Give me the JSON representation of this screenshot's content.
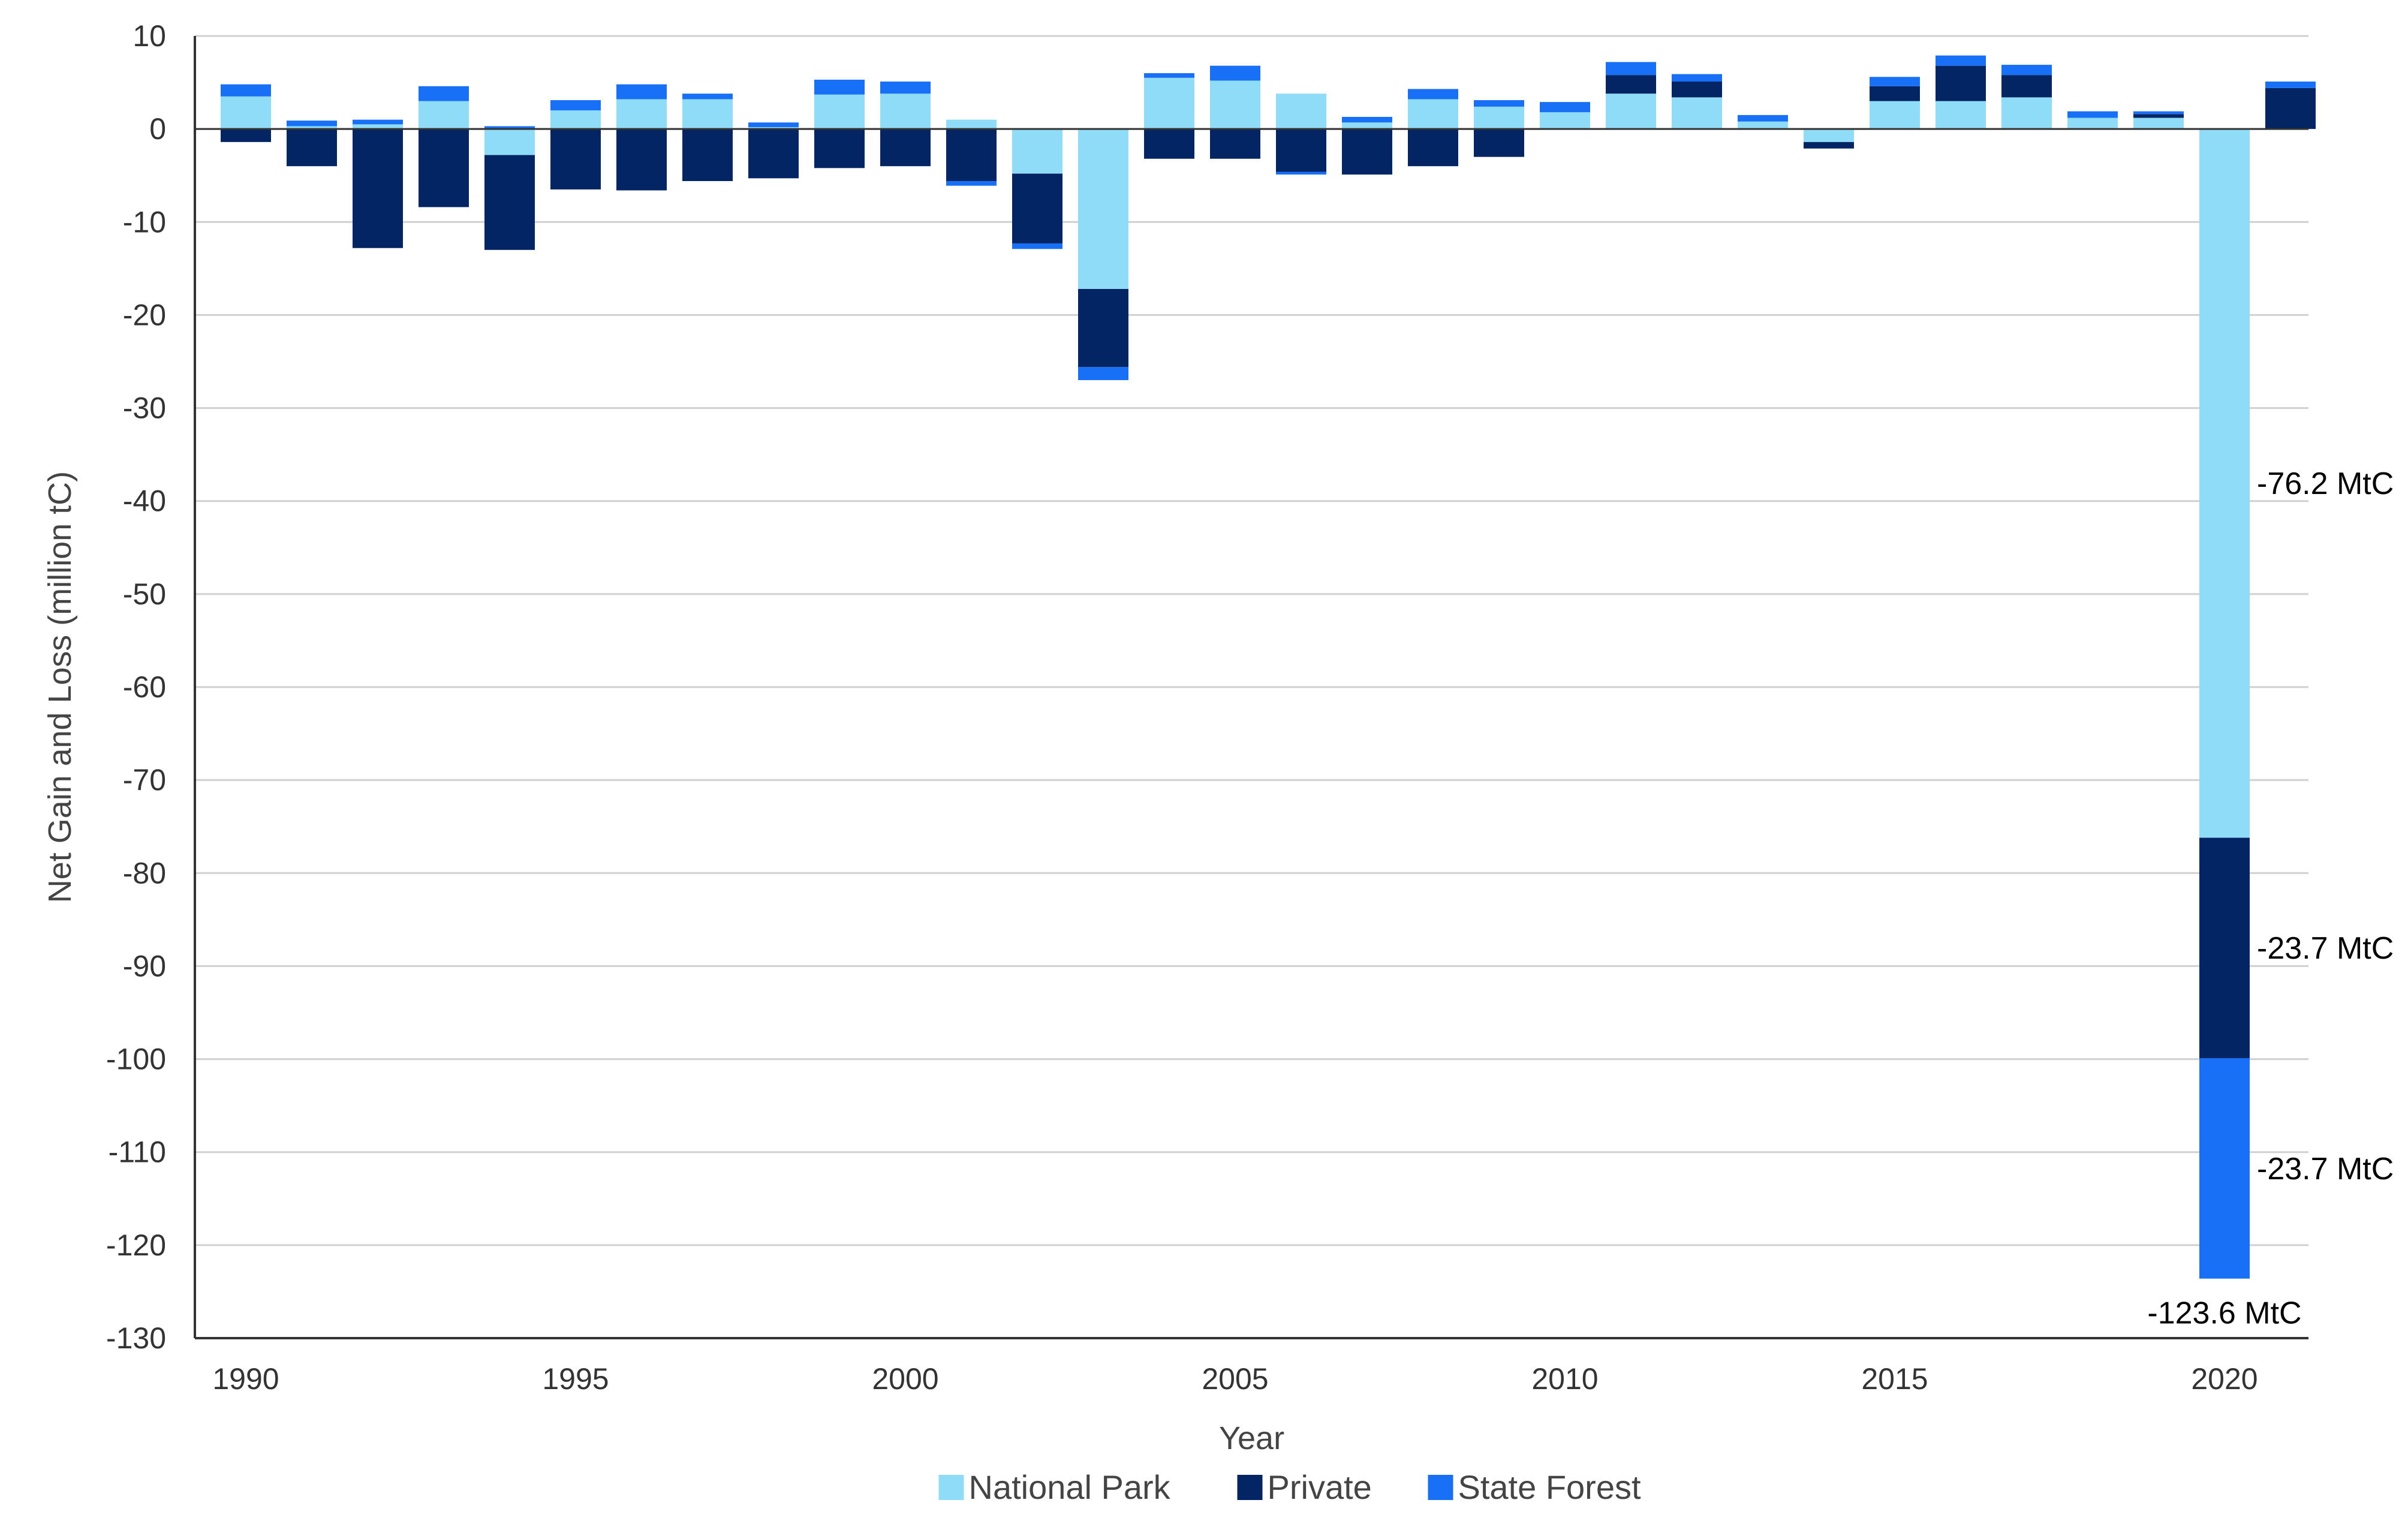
{
  "chart_data": {
    "type": "bar",
    "stacked": true,
    "title": "",
    "xlabel": "Year",
    "ylabel": "Net Gain and Loss (million tC)",
    "ylim": [
      -130,
      10
    ],
    "yticks": [
      10,
      0,
      -10,
      -20,
      -30,
      -40,
      -50,
      -60,
      -70,
      -80,
      -90,
      -100,
      -110,
      -120,
      -130
    ],
    "xticks": [
      1990,
      1995,
      2000,
      2005,
      2010,
      2015,
      2020
    ],
    "grid": true,
    "legend_position": "bottom",
    "categories": [
      1990,
      1991,
      1992,
      1993,
      1994,
      1995,
      1996,
      1997,
      1998,
      1999,
      2000,
      2001,
      2002,
      2003,
      2004,
      2005,
      2006,
      2007,
      2008,
      2009,
      2010,
      2011,
      2012,
      2013,
      2014,
      2015,
      2016,
      2017,
      2018,
      2019,
      2020,
      2021
    ],
    "series": [
      {
        "name": "National Park",
        "color": "#8fdcf9",
        "values": [
          3.5,
          0.3,
          0.5,
          3.0,
          -2.8,
          2.0,
          3.2,
          3.2,
          0.2,
          3.7,
          3.8,
          1.0,
          -4.8,
          -17.2,
          5.5,
          5.2,
          3.8,
          0.7,
          3.2,
          2.4,
          1.8,
          3.8,
          3.4,
          0.8,
          -1.4,
          3.0,
          3.0,
          3.4,
          1.2,
          1.2,
          -76.2,
          0.0
        ]
      },
      {
        "name": "Private",
        "color": "#032563",
        "values": [
          -1.4,
          -4.0,
          -12.8,
          -8.4,
          -10.2,
          -6.5,
          -6.6,
          -5.6,
          -5.3,
          -4.2,
          -4.0,
          -5.6,
          -7.5,
          -8.4,
          -3.2,
          -3.2,
          -4.6,
          -4.9,
          -4.0,
          -3.0,
          0.0,
          2.0,
          1.7,
          0.0,
          -0.7,
          1.6,
          3.8,
          2.4,
          0.0,
          0.4,
          -23.7,
          4.4
        ]
      },
      {
        "name": "State Forest",
        "color": "#1870f7",
        "values": [
          1.3,
          0.6,
          0.5,
          1.6,
          0.3,
          1.1,
          1.6,
          0.6,
          0.5,
          1.6,
          1.3,
          -0.5,
          -0.6,
          -1.4,
          0.5,
          1.6,
          -0.3,
          0.6,
          1.1,
          0.7,
          1.1,
          1.4,
          0.8,
          0.7,
          0.0,
          1.0,
          1.1,
          1.1,
          0.7,
          0.3,
          -23.7,
          0.7
        ]
      }
    ],
    "annotations": [
      {
        "text": "-76.2 MtC",
        "series": "National Park",
        "category": 2020
      },
      {
        "text": "-23.7 MtC",
        "series": "Private",
        "category": 2020
      },
      {
        "text": "-23.7 MtC",
        "series": "State Forest",
        "category": 2020
      },
      {
        "text": "-123.6 MtC",
        "series": "total",
        "category": 2020
      }
    ]
  }
}
